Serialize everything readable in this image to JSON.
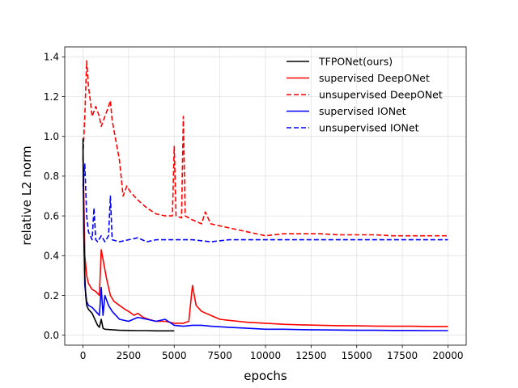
{
  "chart_data": {
    "type": "line",
    "title": "",
    "xlabel": "epochs",
    "ylabel": "relative L2 norm",
    "xlim": [
      -1000,
      21000
    ],
    "ylim": [
      -0.05,
      1.45
    ],
    "grid": true,
    "legend_position": "top-right",
    "x_ticks": [
      0,
      2500,
      5000,
      7500,
      10000,
      12500,
      15000,
      17500,
      20000
    ],
    "x_tick_labels": [
      "0",
      "2500",
      "5000",
      "7500",
      "10000",
      "12500",
      "15000",
      "17500",
      "20000"
    ],
    "y_ticks": [
      0.0,
      0.2,
      0.4,
      0.6,
      0.8,
      1.0,
      1.2,
      1.4
    ],
    "y_tick_labels": [
      "0.0",
      "0.2",
      "0.4",
      "0.6",
      "0.8",
      "1.0",
      "1.2",
      "1.4"
    ],
    "series": [
      {
        "name": "TFPONet(ours)",
        "color": "#000000",
        "dash": "solid",
        "x": [
          0,
          50,
          100,
          150,
          200,
          300,
          400,
          500,
          600,
          700,
          800,
          900,
          1000,
          1100,
          1200,
          1500,
          2000,
          2500,
          3000,
          3500,
          4000,
          4500,
          5000
        ],
        "y": [
          0.99,
          0.5,
          0.3,
          0.2,
          0.15,
          0.13,
          0.12,
          0.11,
          0.09,
          0.07,
          0.05,
          0.04,
          0.08,
          0.035,
          0.03,
          0.028,
          0.025,
          0.024,
          0.023,
          0.023,
          0.022,
          0.022,
          0.022
        ]
      },
      {
        "name": "supervised DeepONet",
        "color": "#ff0000",
        "dash": "solid",
        "x": [
          0,
          100,
          200,
          300,
          500,
          700,
          900,
          1000,
          1100,
          1300,
          1500,
          1700,
          2000,
          2300,
          2500,
          2800,
          3000,
          3300,
          3600,
          4000,
          4500,
          5000,
          5500,
          5800,
          6000,
          6200,
          6500,
          7000,
          7500,
          8000,
          8500,
          9000,
          10000,
          11000,
          12000,
          13000,
          14000,
          15000,
          16000,
          17000,
          18000,
          19000,
          20000
        ],
        "y": [
          0.95,
          0.4,
          0.3,
          0.26,
          0.23,
          0.22,
          0.2,
          0.43,
          0.38,
          0.28,
          0.2,
          0.17,
          0.15,
          0.13,
          0.12,
          0.1,
          0.11,
          0.09,
          0.08,
          0.07,
          0.07,
          0.06,
          0.06,
          0.07,
          0.25,
          0.15,
          0.12,
          0.1,
          0.08,
          0.075,
          0.07,
          0.065,
          0.06,
          0.055,
          0.052,
          0.05,
          0.048,
          0.047,
          0.046,
          0.045,
          0.045,
          0.044,
          0.044
        ]
      },
      {
        "name": "unsupervised DeepONet",
        "color": "#ff0000",
        "dash": "dashed",
        "x": [
          0,
          100,
          200,
          300,
          400,
          500,
          700,
          900,
          1000,
          1200,
          1400,
          1500,
          1600,
          1800,
          2000,
          2200,
          2400,
          2600,
          3000,
          3500,
          4000,
          4500,
          4900,
          5000,
          5100,
          5400,
          5500,
          5600,
          6000,
          6500,
          6700,
          7000,
          7500,
          8000,
          8500,
          9000,
          10000,
          11000,
          12000,
          13000,
          14000,
          15000,
          16000,
          17000,
          18000,
          19000,
          20000
        ],
        "y": [
          0.9,
          1.1,
          1.38,
          1.25,
          1.18,
          1.1,
          1.15,
          1.1,
          1.05,
          1.1,
          1.15,
          1.18,
          1.08,
          0.98,
          0.88,
          0.7,
          0.75,
          0.72,
          0.68,
          0.64,
          0.61,
          0.6,
          0.6,
          0.95,
          0.6,
          0.59,
          1.1,
          0.6,
          0.58,
          0.56,
          0.62,
          0.56,
          0.55,
          0.54,
          0.53,
          0.52,
          0.5,
          0.51,
          0.51,
          0.51,
          0.505,
          0.505,
          0.505,
          0.5,
          0.5,
          0.5,
          0.5
        ]
      },
      {
        "name": "supervised IONet",
        "color": "#0000ff",
        "dash": "solid",
        "x": [
          0,
          50,
          100,
          200,
          300,
          500,
          700,
          900,
          1000,
          1100,
          1200,
          1400,
          1600,
          1800,
          2000,
          2500,
          3000,
          3500,
          4000,
          4500,
          5000,
          5500,
          6000,
          6500,
          7000,
          8000,
          9000,
          10000,
          11000,
          12000,
          13000,
          14000,
          15000,
          16000,
          17000,
          18000,
          19000,
          20000
        ],
        "y": [
          0.9,
          0.5,
          0.25,
          0.17,
          0.15,
          0.14,
          0.12,
          0.1,
          0.24,
          0.1,
          0.2,
          0.15,
          0.12,
          0.1,
          0.08,
          0.07,
          0.09,
          0.08,
          0.07,
          0.08,
          0.05,
          0.045,
          0.05,
          0.05,
          0.045,
          0.04,
          0.035,
          0.03,
          0.03,
          0.028,
          0.027,
          0.026,
          0.025,
          0.025,
          0.024,
          0.024,
          0.023,
          0.023
        ]
      },
      {
        "name": "unsupervised IONet",
        "color": "#0000ff",
        "dash": "dashed",
        "x": [
          0,
          100,
          200,
          300,
          400,
          500,
          600,
          700,
          800,
          1000,
          1200,
          1400,
          1500,
          1600,
          2000,
          2500,
          3000,
          3500,
          4000,
          5000,
          6000,
          7000,
          8000,
          9000,
          10000,
          11000,
          12000,
          13000,
          14000,
          15000,
          16000,
          17000,
          18000,
          19000,
          20000
        ],
        "y": [
          0.75,
          0.86,
          0.6,
          0.52,
          0.5,
          0.48,
          0.64,
          0.48,
          0.47,
          0.5,
          0.47,
          0.5,
          0.7,
          0.48,
          0.47,
          0.48,
          0.49,
          0.47,
          0.48,
          0.48,
          0.48,
          0.47,
          0.48,
          0.48,
          0.48,
          0.48,
          0.48,
          0.48,
          0.48,
          0.48,
          0.48,
          0.48,
          0.48,
          0.48,
          0.48
        ]
      }
    ]
  }
}
